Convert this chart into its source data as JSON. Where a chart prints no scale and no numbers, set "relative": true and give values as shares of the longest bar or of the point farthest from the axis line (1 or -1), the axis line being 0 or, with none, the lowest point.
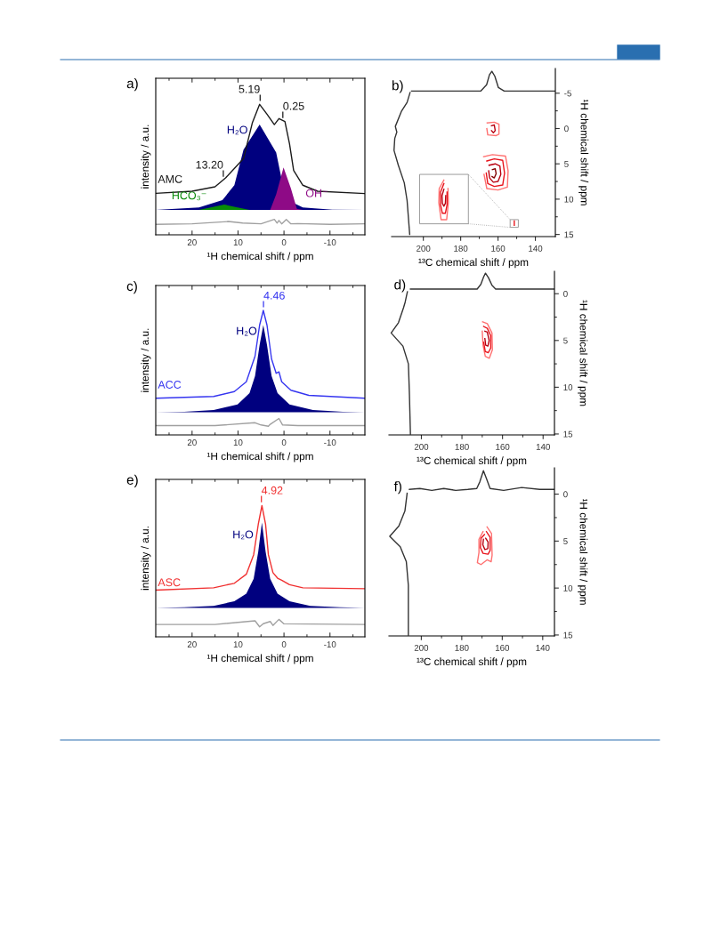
{
  "chart_data": [
    {
      "type": "line",
      "title": "a)",
      "xlabel": "¹H chemical shift / ppm",
      "ylabel": "intensity / a.u.",
      "relative": true,
      "xlim": [
        27.9,
        -17.6
      ],
      "xticks": [
        20,
        10,
        0,
        -10,
        {
          "value": 25,
          "label": null
        },
        {
          "value": 15,
          "label": null
        },
        {
          "value": 5,
          "label": null
        },
        {
          "value": -5,
          "label": null
        },
        {
          "value": -15,
          "label": null
        }
      ],
      "series": [
        {
          "name": "AMC",
          "color": "#1a1a1a",
          "x": [
            27.9,
            20,
            15,
            12.7,
            8.8,
            6.9,
            5.3,
            3.7,
            2.1,
            1.1,
            -0.2,
            -1.2,
            -2.1,
            -4.1,
            -7.3,
            -17.6
          ],
          "values": [
            0.318,
            0.334,
            0.368,
            0.436,
            0.584,
            0.857,
            1.0,
            0.925,
            0.845,
            0.891,
            0.868,
            0.698,
            0.493,
            0.38,
            0.334,
            0.316
          ]
        },
        {
          "type": "area",
          "name": "H₂O",
          "color": "#00007f",
          "x": [
            27.9,
            18.5,
            13.4,
            10.8,
            8.8,
            5.3,
            1.7,
            0.5,
            -2.3,
            -4.1,
            -10.5,
            -17.6
          ],
          "values": [
            0.191,
            0.209,
            0.266,
            0.38,
            0.652,
            0.845,
            0.63,
            0.425,
            0.24,
            0.209,
            0.193,
            0.191
          ]
        },
        {
          "type": "area",
          "name": "HCO₃⁻",
          "color": "#078a07",
          "x": [
            18.5,
            15.3,
            13.0,
            10.1,
            7.5
          ],
          "values": [
            0.191,
            0.215,
            0.232,
            0.21,
            0.191
          ]
        },
        {
          "type": "area",
          "name": "OH⁻",
          "color": "#8e0a86",
          "x": [
            3.0,
            1.7,
            0.1,
            -1.5,
            -2.8,
            -4.1
          ],
          "values": [
            0.191,
            0.311,
            0.516,
            0.357,
            0.2,
            0.191
          ]
        },
        {
          "color": "#a0a0a0",
          "x": [
            27.9,
            20,
            12.1,
            9,
            5,
            2.1,
            1.5,
            1.1,
            0.5,
            -0.5,
            -1.5,
            -3,
            -10,
            -17.6
          ],
          "values": [
            0.08,
            0.084,
            0.102,
            0.09,
            0.084,
            0.118,
            0.09,
            0.11,
            0.084,
            0.118,
            0.084,
            0.086,
            0.08,
            0.084
          ]
        }
      ],
      "annotations": [
        {
          "text": "5.19",
          "x": 5.19,
          "y": 1.0
        },
        {
          "text": "0.25",
          "x": 0.25,
          "y": 0.87
        },
        {
          "text": "13.20",
          "x": 13.2,
          "y": 0.42
        }
      ]
    },
    {
      "type": "line",
      "title": "b)",
      "xlabel": "¹³C chemical shift / ppm",
      "ylabel": "¹H chemical shift / ppm",
      "xlim": [
        217,
        129.3
      ],
      "ylim": [
        15.3,
        -8.5
      ],
      "xticks": [
        200,
        180,
        160,
        140,
        {
          "value": 190,
          "label": null
        },
        {
          "value": 170,
          "label": null
        },
        {
          "value": 150,
          "label": null
        }
      ],
      "yticks": [
        -5,
        0,
        5,
        10,
        15,
        {
          "value": -2.5,
          "label": null
        },
        {
          "value": 2.5,
          "label": null
        },
        {
          "value": 7.5,
          "label": null
        },
        {
          "value": 12.5,
          "label": null
        }
      ],
      "series": [
        {
          "color": "#333333",
          "x": [
            206.3,
            169.3,
            166.1,
            164.6,
            163.3,
            161.7,
            159.8,
            156.7,
            129.3
          ],
          "values": [
            -5.3,
            -5.3,
            -6.2,
            -7.6,
            -8.1,
            -7.4,
            -5.8,
            -5.3,
            -5.3
          ]
        },
        {
          "color": "#333333",
          "x": [
            207.3,
            207.3,
            208.7,
            210.2,
            213.4,
            215.7,
            215.3,
            214.2,
            215.0,
            211.8,
            208.7,
            207.1
          ],
          "values": [
            15.0,
            15.0,
            10.2,
            7.7,
            5.2,
            3.1,
            1.4,
            0.5,
            -0.3,
            -2.4,
            -3.7,
            -5.1
          ]
        },
        {
          "color": "#ff7070",
          "x": [
            167.7,
            163,
            156,
            154.6,
            155,
            160,
            166,
            167.5
          ],
          "values": [
            4.0,
            3.7,
            3.9,
            6,
            8.3,
            8.7,
            8.5,
            6.5
          ]
        },
        {
          "color": "#e8141c",
          "x": [
            166,
            162,
            157.5,
            156.5,
            157.5,
            162,
            165.5,
            166.3
          ],
          "values": [
            4.6,
            4.3,
            4.5,
            6.3,
            8,
            8.2,
            7.8,
            6.3
          ]
        },
        {
          "color": "#b80010",
          "x": [
            164.8,
            161.5,
            159,
            158.5,
            160,
            162.5,
            164.5,
            165
          ],
          "values": [
            5.2,
            5.0,
            5.3,
            6.5,
            7.5,
            7.6,
            7.0,
            6
          ]
        },
        {
          "color": "#800000",
          "x": [
            163,
            161.5,
            161,
            162,
            163.2
          ],
          "values": [
            5.8,
            5.7,
            6.4,
            7,
            6.8
          ]
        },
        {
          "color": "#ff7070",
          "x": [
            165.8,
            162,
            159.5,
            159.5,
            161,
            165.5,
            166
          ],
          "values": [
            -0.8,
            -0.9,
            -0.6,
            0.8,
            1.0,
            0.9,
            0
          ]
        },
        {
          "color": "#b80010",
          "x": [
            163.5,
            162,
            161.5,
            162.5,
            163.5
          ],
          "values": [
            -0.4,
            -0.5,
            0.3,
            0.6,
            0.3
          ]
        },
        {
          "color": "#e8141c",
          "x": [
            151.3,
            151.3
          ],
          "values": [
            13.1,
            13.7
          ]
        },
        {
          "color": "#ff7070",
          "x": [
            189,
            191.5,
            191.7,
            190.5,
            187.5,
            186.6,
            186.8
          ],
          "values": [
            7.3,
            8.5,
            10.5,
            12.9,
            12.9,
            10.5,
            8.5
          ]
        },
        {
          "color": "#e8141c",
          "x": [
            189,
            190.8,
            190.8,
            189.8,
            188.2,
            187.3,
            187.3
          ],
          "values": [
            7.8,
            9,
            10.8,
            12,
            12,
            10.8,
            9
          ]
        },
        {
          "color": "#b80010",
          "x": [
            189,
            190,
            189.8,
            189,
            188.2,
            188
          ],
          "values": [
            8.6,
            9.5,
            10.6,
            11,
            10.6,
            9.5
          ]
        }
      ]
    },
    {
      "type": "line",
      "title": "c)",
      "xlabel": "¹H chemical shift / ppm",
      "ylabel": "intensity / a.u.",
      "relative": true,
      "xlim": [
        27.9,
        -17.6
      ],
      "xticks": [
        20,
        10,
        0,
        -10,
        {
          "value": 25,
          "label": null
        },
        {
          "value": 15,
          "label": null
        },
        {
          "value": 5,
          "label": null
        },
        {
          "value": -5,
          "label": null
        },
        {
          "value": -15,
          "label": null
        }
      ],
      "series": [
        {
          "name": "ACC",
          "color": "#3535f0",
          "x": [
            27.9,
            15.3,
            10.8,
            8.2,
            6.3,
            5.3,
            4.5,
            3.7,
            2.7,
            1.7,
            1.1,
            0.5,
            -1.5,
            -5.4,
            -17.6
          ],
          "values": [
            0.295,
            0.309,
            0.348,
            0.427,
            0.632,
            0.882,
            1.0,
            0.882,
            0.609,
            0.495,
            0.507,
            0.427,
            0.359,
            0.318,
            0.295
          ]
        },
        {
          "type": "area",
          "name": "H₂O",
          "color": "#00007f",
          "x": [
            27.9,
            21.7,
            15.3,
            10.1,
            7.5,
            6.3,
            5.3,
            4.5,
            3.7,
            2.7,
            1.4,
            -1.2,
            -6.3,
            -12.8,
            -17.6
          ],
          "values": [
            0.182,
            0.186,
            0.2,
            0.245,
            0.336,
            0.473,
            0.723,
            0.882,
            0.723,
            0.473,
            0.336,
            0.245,
            0.2,
            0.186,
            0.182
          ]
        },
        {
          "color": "#a0a0a0",
          "x": [
            27.9,
            15,
            6.3,
            5,
            3.4,
            3,
            1.1,
            0.3,
            -3,
            -17.6
          ],
          "values": [
            0.075,
            0.075,
            0.098,
            0.08,
            0.07,
            0.085,
            0.132,
            0.08,
            0.075,
            0.075
          ]
        }
      ],
      "annotations": [
        {
          "text": "4.46",
          "x": 4.46,
          "y": 1.0
        }
      ]
    },
    {
      "type": "line",
      "title": "d)",
      "xlabel": "¹³C chemical shift / ppm",
      "ylabel": "¹H chemical shift / ppm",
      "xlim": [
        216,
        134.4
      ],
      "ylim": [
        15.1,
        -2.4
      ],
      "xticks": [
        200,
        180,
        160,
        140,
        {
          "value": 190,
          "label": null
        },
        {
          "value": 170,
          "label": null
        },
        {
          "value": 150,
          "label": null
        }
      ],
      "yticks": [
        0,
        5,
        10,
        15,
        {
          "value": 2.5,
          "label": null
        },
        {
          "value": 7.5,
          "label": null
        },
        {
          "value": 12.5,
          "label": null
        }
      ],
      "series": [
        {
          "color": "#333333",
          "x": [
            205.4,
            172.5,
            170.7,
            169.3,
            168.4,
            166.9,
            165.2,
            163.4,
            134.4
          ],
          "values": [
            -0.5,
            -0.5,
            -1.0,
            -1.8,
            -2.2,
            -1.7,
            -0.9,
            -0.5,
            -0.5
          ]
        },
        {
          "color": "#333333",
          "x": [
            205.4,
            205.9,
            206.4,
            209.1,
            214.9,
            211.3,
            208.8,
            208.0,
            206.9
          ],
          "values": [
            15.0,
            10.7,
            7.5,
            5.6,
            4.2,
            3.1,
            1.5,
            0.9,
            -0.2
          ]
        },
        {
          "color": "#ff7070",
          "x": [
            169.8,
            167.5,
            165.2,
            165.0,
            166.5,
            168.5,
            169.6,
            170
          ],
          "values": [
            3.0,
            3.2,
            4.2,
            6.0,
            6.9,
            6.7,
            5.5,
            4
          ]
        },
        {
          "color": "#e8141c",
          "x": [
            169.3,
            167.5,
            165.8,
            165.8,
            167,
            168.5,
            169.3
          ],
          "values": [
            3.5,
            3.7,
            4.5,
            5.8,
            6.3,
            6.2,
            5.2
          ]
        },
        {
          "color": "#b80010",
          "x": [
            168.7,
            167.5,
            166.6,
            167.2,
            168.3,
            168.7
          ],
          "values": [
            4.0,
            4.1,
            5.0,
            5.6,
            5.5,
            4.8
          ]
        }
      ]
    },
    {
      "type": "line",
      "title": "e)",
      "xlabel": "¹H chemical shift / ppm",
      "ylabel": "intensity / a.u.",
      "relative": true,
      "xlim": [
        27.9,
        -17.6
      ],
      "xticks": [
        20,
        10,
        0,
        -10,
        {
          "value": 25,
          "label": null
        },
        {
          "value": 15,
          "label": null
        },
        {
          "value": 5,
          "label": null
        },
        {
          "value": -5,
          "label": null
        },
        {
          "value": -15,
          "label": null
        }
      ],
      "series": [
        {
          "name": "ASC",
          "color": "#f03030",
          "x": [
            27.9,
            15.3,
            10.8,
            8.2,
            6.6,
            5.6,
            4.8,
            4.0,
            3.4,
            2.4,
            1.4,
            0.5,
            -1.2,
            -4.1,
            -17.6
          ],
          "values": [
            0.356,
            0.374,
            0.408,
            0.477,
            0.626,
            0.856,
            1.0,
            0.856,
            0.626,
            0.489,
            0.447,
            0.431,
            0.397,
            0.374,
            0.367
          ]
        },
        {
          "type": "area",
          "name": "H₂O",
          "color": "#00007f",
          "x": [
            27.9,
            21.7,
            15.3,
            10.8,
            8.2,
            6.6,
            5.6,
            4.8,
            4.0,
            3.0,
            1.4,
            -1.2,
            -5.7,
            -12.1,
            -17.6
          ],
          "values": [
            0.22,
            0.225,
            0.236,
            0.271,
            0.328,
            0.443,
            0.649,
            0.872,
            0.649,
            0.443,
            0.328,
            0.271,
            0.236,
            0.225,
            0.22
          ]
        },
        {
          "color": "#a0a0a0",
          "x": [
            27.9,
            15,
            6.3,
            5.3,
            4.5,
            3,
            2.4,
            1.1,
            0,
            -17.6
          ],
          "values": [
            0.094,
            0.094,
            0.122,
            0.076,
            0.1,
            0.117,
            0.087,
            0.133,
            0.099,
            0.094
          ]
        }
      ],
      "annotations": [
        {
          "text": "4.92",
          "x": 4.92,
          "y": 1.0
        }
      ]
    },
    {
      "type": "line",
      "title": "f)",
      "xlabel": "¹³C chemical shift / ppm",
      "ylabel": "¹H chemical shift / ppm",
      "xlim": [
        216,
        134.2
      ],
      "ylim": [
        15.1,
        -2.8
      ],
      "xticks": [
        200,
        180,
        160,
        140,
        {
          "value": 190,
          "label": null
        },
        {
          "value": 170,
          "label": null
        },
        {
          "value": 150,
          "label": null
        }
      ],
      "yticks": [
        0,
        5,
        10,
        15,
        {
          "value": 2.5,
          "label": null
        },
        {
          "value": 7.5,
          "label": null
        },
        {
          "value": 12.5,
          "label": null
        }
      ],
      "series": [
        {
          "color": "#333333",
          "x": [
            205.9,
            200.7,
            194.8,
            188.9,
            183,
            177,
            172.6,
            171.1,
            169.3,
            167.9,
            166,
            159.3,
            150.4,
            141.5,
            134.4
          ],
          "values": [
            -0.5,
            -0.6,
            -0.4,
            -0.6,
            -0.4,
            -0.5,
            -0.6,
            -1.3,
            -2.5,
            -1.7,
            -0.6,
            -0.4,
            -0.7,
            -0.5,
            -0.5
          ]
        },
        {
          "color": "#333333",
          "x": [
            206.4,
            206.4,
            207.4,
            210.4,
            215.6,
            211.1,
            208.1,
            207.0
          ],
          "values": [
            15.0,
            9.7,
            7.2,
            5.6,
            4.5,
            3.4,
            1.8,
            -0.1
          ]
        },
        {
          "color": "#ff7070",
          "x": [
            167.5,
            165.3,
            165.0,
            165.5,
            167.5,
            170.5,
            172.3,
            171.5,
            171.5,
            169.5
          ],
          "values": [
            3.5,
            4.2,
            6.5,
            7.2,
            7.0,
            7.5,
            7.3,
            6.2,
            4.8,
            4.0
          ]
        },
        {
          "color": "#e8141c",
          "x": [
            167.8,
            166,
            166,
            167,
            169.5,
            170.8,
            170.5,
            168.8
          ],
          "values": [
            4.0,
            4.6,
            6,
            6.4,
            6.3,
            5.7,
            4.7,
            4.3
          ]
        },
        {
          "color": "#b80010",
          "x": [
            168.2,
            167,
            167.1,
            168.6,
            169.6,
            169.3
          ],
          "values": [
            4.7,
            5.1,
            5.8,
            5.9,
            5.4,
            4.8
          ]
        }
      ]
    }
  ]
}
